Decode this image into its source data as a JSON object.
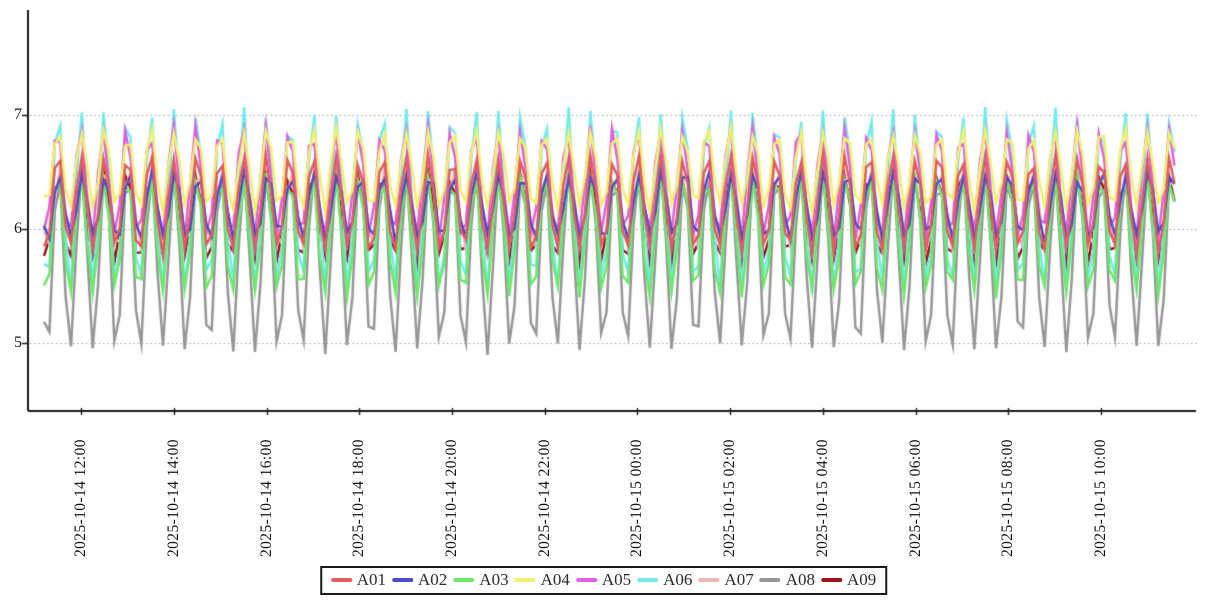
{
  "chart_data": {
    "type": "line",
    "title": "",
    "background_color": "#ffffff",
    "axis_color": "#1a1a1a",
    "grid_color": "#a0a0a0",
    "grid_style": "dashed",
    "text_color": "#111111",
    "x_axis": {
      "start": "2025-10-14 11:12",
      "end": "2025-10-15 11:35",
      "step_minutes": 7,
      "samples": 210,
      "first_tick_offset_minutes": 48,
      "tick_interval_minutes": 120,
      "tick_labels": [
        "2025-10-14 12:00",
        "2025-10-14 14:00",
        "2025-10-14 16:00",
        "2025-10-14 18:00",
        "2025-10-14 20:00",
        "2025-10-14 22:00",
        "2025-10-15 00:00",
        "2025-10-15 02:00",
        "2025-10-15 04:00",
        "2025-10-15 06:00",
        "2025-10-15 08:00",
        "2025-10-15 10:00"
      ]
    },
    "y_axis": {
      "tick_labels": [
        "7",
        "6",
        "5"
      ],
      "tick_values": [
        7,
        6,
        5
      ],
      "min": 4.4,
      "max": 7.9,
      "grid": true
    },
    "wave_period_minutes": 30,
    "noise_amplitude": 0.045,
    "noise_seed": 1014,
    "series": [
      {
        "name": "A01",
        "color": "#e15d5d",
        "base": 6.22,
        "amplitude": 0.42,
        "phase_minutes": -10.5,
        "approx_min": 5.8,
        "approx_max": 6.64
      },
      {
        "name": "A02",
        "color": "#4c4ccd",
        "base": 6.2,
        "amplitude": 0.29,
        "phase_minutes": -12.0,
        "approx_min": 5.91,
        "approx_max": 6.49
      },
      {
        "name": "A03",
        "color": "#6ce86c",
        "base": 5.95,
        "amplitude": 0.53,
        "phase_minutes": -10.5,
        "approx_min": 5.42,
        "approx_max": 6.48
      },
      {
        "name": "A04",
        "color": "#f3f06c",
        "base": 6.52,
        "amplitude": 0.34,
        "phase_minutes": -11.0,
        "approx_min": 6.18,
        "approx_max": 6.86
      },
      {
        "name": "A05",
        "color": "#e160e1",
        "base": 6.4,
        "amplitude": 0.48,
        "phase_minutes": -9.5,
        "approx_min": 5.92,
        "approx_max": 6.88
      },
      {
        "name": "A06",
        "color": "#72ebeb",
        "base": 6.25,
        "amplitude": 0.78,
        "phase_minutes": -10.8,
        "approx_min": 5.47,
        "approx_max": 7.03
      },
      {
        "name": "A07",
        "color": "#f1b6b6",
        "base": 6.18,
        "amplitude": 0.34,
        "phase_minutes": -12.5,
        "approx_min": 5.84,
        "approx_max": 6.52
      },
      {
        "name": "A08",
        "color": "#979797",
        "base": 5.73,
        "amplitude": 0.8,
        "phase_minutes": -11.2,
        "approx_min": 4.93,
        "approx_max": 6.53
      },
      {
        "name": "A09",
        "color": "#a21212",
        "base": 6.1,
        "amplitude": 0.38,
        "phase_minutes": -10.0,
        "approx_min": 5.72,
        "approx_max": 6.48
      }
    ],
    "series_model": "value(t) = base + amplitude * sin(2*pi*(t + phase_minutes)/wave_period_minutes) + uniform_noise(+/- noise_amplitude), where t = minutes since x_axis.start sampled every step_minutes; draw order is A09 (back) through A01 (front)",
    "legend": {
      "position": "bottom-center",
      "labels": [
        "A01",
        "A02",
        "A03",
        "A04",
        "A05",
        "A06",
        "A07",
        "A08",
        "A09"
      ]
    }
  }
}
